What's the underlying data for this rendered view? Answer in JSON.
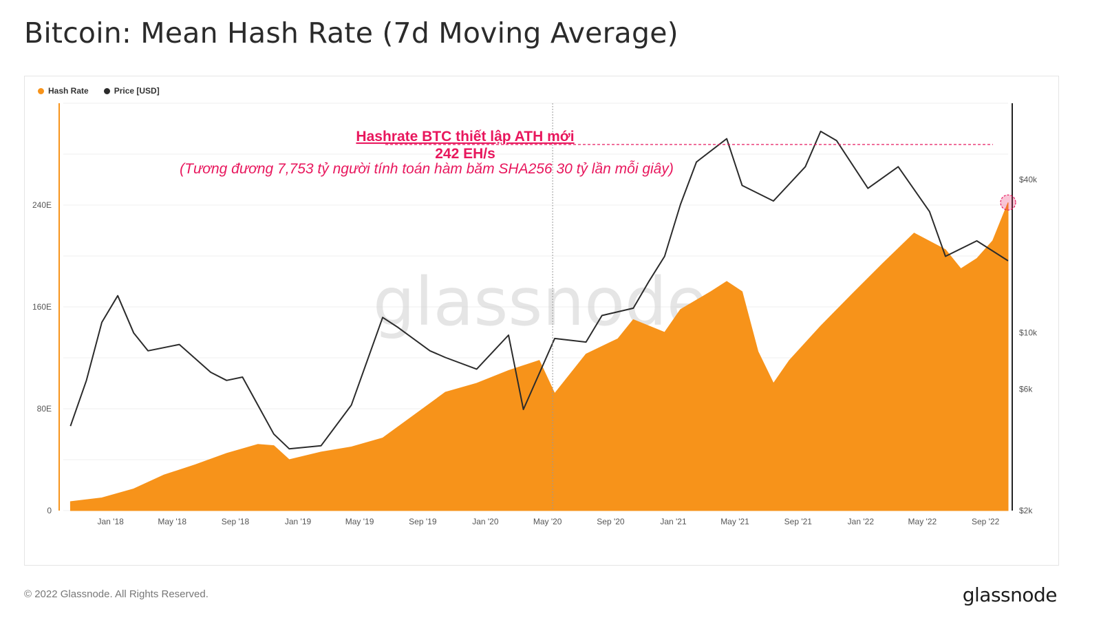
{
  "title": "Bitcoin: Mean Hash Rate (7d Moving Average)",
  "footer": {
    "copyright": "© 2022 Glassnode. All Rights Reserved.",
    "logo": "glassnode"
  },
  "watermark": "glassnode",
  "colors": {
    "hash_rate": "#f7931a",
    "price": "#2b2b2b",
    "annotation": "#e8175d"
  },
  "chart_data": {
    "type": "area",
    "legend": [
      {
        "name": "Hash Rate",
        "color": "#f7931a"
      },
      {
        "name": "Price [USD]",
        "color": "#2b2b2b"
      }
    ],
    "legend_position": "top-left",
    "grid": true,
    "x_ticks": [
      "Jan '18",
      "May '18",
      "Sep '18",
      "Jan '19",
      "May '19",
      "Sep '19",
      "Jan '20",
      "May '20",
      "Sep '20",
      "Jan '21",
      "May '21",
      "Sep '21",
      "Jan '22",
      "May '22",
      "Sep '22"
    ],
    "y_left_ticks": [
      "0",
      "80E",
      "160E",
      "240E"
    ],
    "y_left_range_EH": [
      0,
      320
    ],
    "y_right_ticks": [
      "$2k",
      "$6k",
      "$10k",
      "$40k"
    ],
    "y_right_scale": "log",
    "series": [
      {
        "name": "Hash Rate",
        "unit": "EH/s",
        "axis": "left",
        "x": [
          "2017-10",
          "2017-12",
          "2018-02",
          "2018-04",
          "2018-06",
          "2018-08",
          "2018-10",
          "2018-11",
          "2018-12",
          "2019-02",
          "2019-04",
          "2019-06",
          "2019-08",
          "2019-10",
          "2019-12",
          "2020-02",
          "2020-04",
          "2020-05",
          "2020-07",
          "2020-09",
          "2020-10",
          "2020-12",
          "2021-01",
          "2021-03",
          "2021-04",
          "2021-05",
          "2021-06",
          "2021-07",
          "2021-08",
          "2021-10",
          "2021-12",
          "2022-02",
          "2022-04",
          "2022-06",
          "2022-07",
          "2022-08",
          "2022-09",
          "2022-10"
        ],
        "values": [
          7,
          10,
          17,
          28,
          36,
          45,
          52,
          51,
          40,
          46,
          50,
          57,
          75,
          93,
          100,
          110,
          118,
          92,
          123,
          135,
          150,
          140,
          158,
          172,
          180,
          172,
          125,
          100,
          118,
          145,
          170,
          195,
          218,
          205,
          190,
          198,
          212,
          242
        ]
      },
      {
        "name": "Price [USD]",
        "unit": "USD",
        "axis": "right",
        "x": [
          "2017-10",
          "2017-11",
          "2017-12",
          "2018-01",
          "2018-02",
          "2018-03",
          "2018-05",
          "2018-07",
          "2018-08",
          "2018-09",
          "2018-11",
          "2018-12",
          "2019-02",
          "2019-04",
          "2019-06",
          "2019-07",
          "2019-09",
          "2019-10",
          "2019-12",
          "2020-02",
          "2020-03",
          "2020-05",
          "2020-07",
          "2020-08",
          "2020-10",
          "2020-11",
          "2020-12",
          "2021-01",
          "2021-02",
          "2021-04",
          "2021-05",
          "2021-07",
          "2021-09",
          "2021-10",
          "2021-11",
          "2022-01",
          "2022-03",
          "2022-05",
          "2022-06",
          "2022-08",
          "2022-10"
        ],
        "values": [
          4300,
          6500,
          11000,
          14000,
          10000,
          8500,
          9000,
          7000,
          6500,
          6700,
          4000,
          3500,
          3600,
          5200,
          11500,
          10500,
          8500,
          8000,
          7200,
          9800,
          5000,
          9500,
          9200,
          11700,
          12500,
          16000,
          20000,
          32000,
          47000,
          58000,
          38000,
          33000,
          45000,
          62000,
          57000,
          37000,
          45000,
          30000,
          20000,
          23000,
          19200
        ]
      }
    ],
    "annotations": {
      "line1": "Hashrate BTC thiết lập ATH mới",
      "line2": "242 EH/s",
      "line3": "(Tương đương 7,753 tỷ người tính toán hàm băm SHA256 30 tỷ lần mỗi giây)"
    }
  }
}
